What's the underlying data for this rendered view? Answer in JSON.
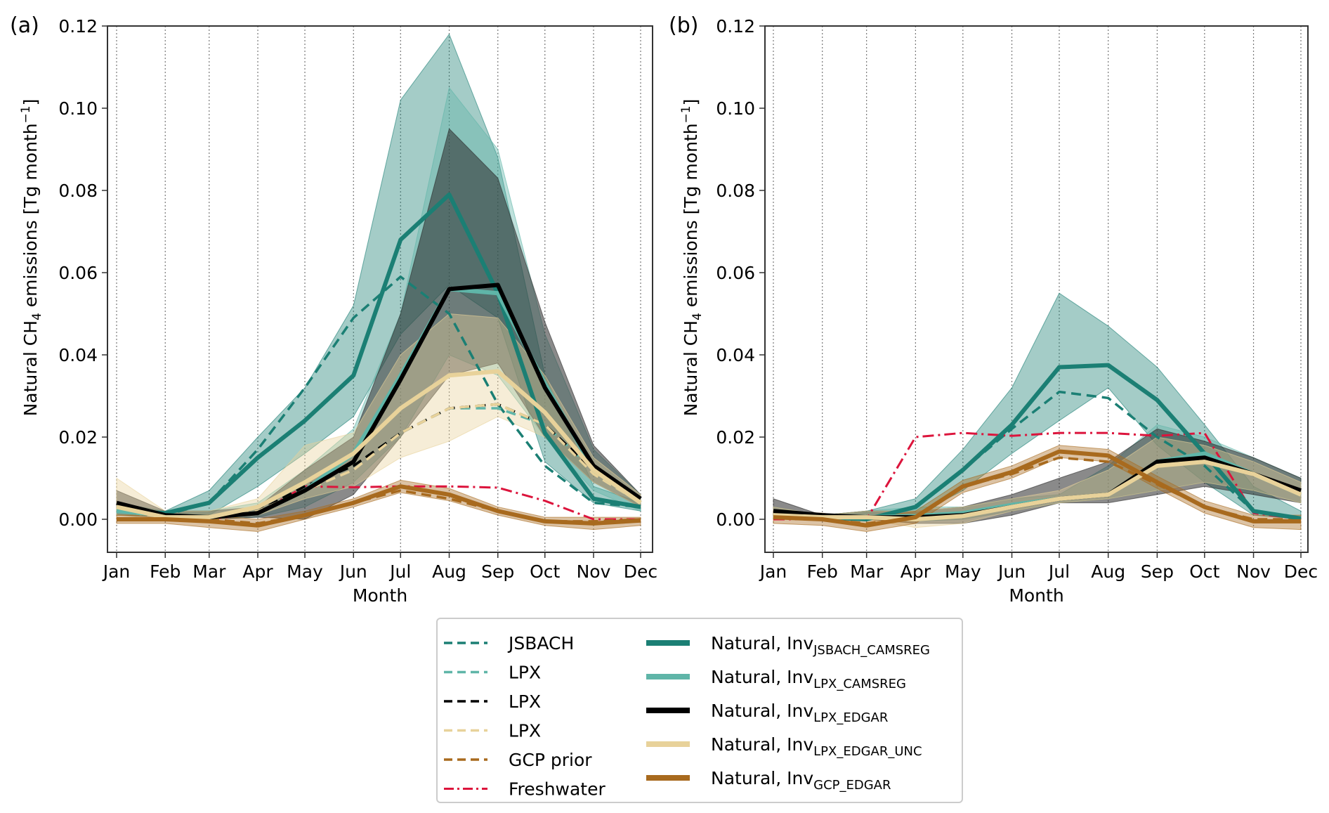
{
  "chart_data": [
    {
      "type": "line",
      "panel_label": "(a)",
      "xlabel": "Month",
      "ylabel": "Natural CH4 emissions [Tg month-1]",
      "ylabel_parts": {
        "pre": "Natural CH",
        "sub": "4",
        "mid": " emissions [Tg month",
        "sup": "−1",
        "post": "]"
      },
      "categories": [
        "Jan",
        "Feb",
        "Mar",
        "Apr",
        "May",
        "Jun",
        "Jul",
        "Aug",
        "Sep",
        "Oct",
        "Nov",
        "Dec"
      ],
      "ylim": [
        -0.008,
        0.12
      ],
      "yticks": [
        "0.00",
        "0.02",
        "0.04",
        "0.06",
        "0.08",
        "0.10",
        "0.12"
      ],
      "grid": "vertical-dotted",
      "bands": [
        {
          "name": "Inv JSBACH_CAMSREG range",
          "color": "#1b7f74",
          "lo": [
            0.001,
            0.001,
            0.001,
            0.008,
            0.016,
            0.025,
            0.045,
            0.057,
            0.049,
            0.014,
            0.004,
            0.002
          ],
          "hi": [
            0.003,
            0.002,
            0.007,
            0.02,
            0.032,
            0.052,
            0.102,
            0.118,
            0.088,
            0.035,
            0.008,
            0.004
          ]
        },
        {
          "name": "Inv LPX_CAMSREG range",
          "color": "#5fb5a8",
          "lo": [
            0.001,
            0.0005,
            0.0,
            0.0005,
            0.003,
            0.009,
            0.02,
            0.04,
            0.035,
            0.02,
            0.007,
            0.002
          ],
          "hi": [
            0.004,
            0.002,
            0.002,
            0.004,
            0.012,
            0.022,
            0.05,
            0.105,
            0.09,
            0.045,
            0.017,
            0.006
          ]
        },
        {
          "name": "Inv LPX_EDGAR range",
          "color": "#2a2a2a",
          "lo": [
            0.001,
            0.0005,
            0.0,
            0.0005,
            0.0,
            0.006,
            0.02,
            0.035,
            0.038,
            0.02,
            0.009,
            0.003
          ],
          "hi": [
            0.007,
            0.002,
            0.002,
            0.003,
            0.012,
            0.02,
            0.05,
            0.095,
            0.083,
            0.048,
            0.018,
            0.006
          ]
        },
        {
          "name": "Inv LPX_EDGAR_UNC range",
          "color": "#e8d29a",
          "lo": [
            0.001,
            0.0,
            0.0,
            0.001,
            0.005,
            0.008,
            0.015,
            0.019,
            0.025,
            0.02,
            0.009,
            0.003
          ],
          "hi": [
            0.01,
            0.002,
            0.002,
            0.005,
            0.018,
            0.021,
            0.04,
            0.05,
            0.049,
            0.035,
            0.015,
            0.006
          ]
        },
        {
          "name": "Inv GCP_EDGAR range",
          "color": "#a86a1e",
          "lo": [
            -0.001,
            -0.001,
            -0.002,
            -0.003,
            0.0,
            0.003,
            0.0065,
            0.0045,
            0.001,
            -0.0015,
            -0.0025,
            -0.0015
          ],
          "hi": [
            0.001,
            0.001,
            0.001,
            0.0,
            0.002,
            0.005,
            0.0095,
            0.0075,
            0.003,
            0.0005,
            0.0005,
            0.0005
          ]
        }
      ],
      "series": [
        {
          "name": "JSBACH",
          "style": "dashed",
          "color": "#1b7f74",
          "values": [
            0.002,
            0.001,
            0.004,
            0.017,
            0.032,
            0.049,
            0.059,
            0.05,
            0.028,
            0.013,
            0.004,
            0.003
          ]
        },
        {
          "name": "LPX (CAMSREG prior)",
          "style": "dashed",
          "color": "#5fb5a8",
          "values": [
            0.002,
            0.001,
            0.0005,
            0.002,
            0.008,
            0.013,
            0.021,
            0.027,
            0.027,
            0.023,
            0.012,
            0.004
          ]
        },
        {
          "name": "LPX (EDGAR prior)",
          "style": "dashed",
          "color": "#000000",
          "values": [
            0.002,
            0.001,
            0.0005,
            0.002,
            0.008,
            0.013,
            0.021,
            0.027,
            0.028,
            0.023,
            0.012,
            0.004
          ]
        },
        {
          "name": "LPX (EDGAR_UNC prior)",
          "style": "dashed",
          "color": "#e8d29a",
          "values": [
            0.002,
            0.0005,
            0.0005,
            0.002,
            0.007,
            0.012,
            0.021,
            0.027,
            0.028,
            0.023,
            0.011,
            0.004
          ]
        },
        {
          "name": "GCP prior",
          "style": "dashed",
          "color": "#a86a1e",
          "values": [
            0.0,
            0.0,
            0.0,
            -0.001,
            0.001,
            0.004,
            0.007,
            0.005,
            0.002,
            -0.0005,
            -0.0005,
            0.0
          ]
        },
        {
          "name": "Freshwater",
          "style": "dashdot",
          "color": "#dc143c",
          "values": [
            0.0,
            0.0,
            0.0,
            0.0015,
            0.008,
            0.0078,
            0.008,
            0.008,
            0.0077,
            0.0045,
            0.0,
            0.0
          ]
        },
        {
          "name": "Natural, Inv JSBACH_CAMSREG",
          "style": "solid",
          "color": "#1b7f74",
          "values": [
            0.002,
            0.0015,
            0.004,
            0.015,
            0.024,
            0.035,
            0.068,
            0.079,
            0.055,
            0.021,
            0.005,
            0.003
          ]
        },
        {
          "name": "Natural, Inv LPX_CAMSREG",
          "style": "solid",
          "color": "#5fb5a8",
          "values": [
            0.002,
            0.001,
            0.0005,
            0.0015,
            0.007,
            0.016,
            0.035,
            0.056,
            0.055,
            0.033,
            0.012,
            0.004
          ]
        },
        {
          "name": "Natural, Inv LPX_EDGAR",
          "style": "solid",
          "color": "#000000",
          "values": [
            0.004,
            0.001,
            0.0005,
            0.0015,
            0.007,
            0.014,
            0.034,
            0.056,
            0.057,
            0.032,
            0.013,
            0.005
          ]
        },
        {
          "name": "Natural, Inv LPX_EDGAR_UNC",
          "style": "solid",
          "color": "#e8d29a",
          "values": [
            0.003,
            0.0005,
            0.0005,
            0.003,
            0.009,
            0.016,
            0.027,
            0.035,
            0.036,
            0.026,
            0.012,
            0.004
          ]
        },
        {
          "name": "Natural, Inv GCP_EDGAR",
          "style": "solid",
          "color": "#a86a1e",
          "values": [
            0.0,
            0.0,
            -0.0005,
            -0.0015,
            0.001,
            0.004,
            0.008,
            0.006,
            0.002,
            -0.0005,
            -0.001,
            -0.0003
          ]
        }
      ]
    },
    {
      "type": "line",
      "panel_label": "(b)",
      "xlabel": "Month",
      "ylabel": "Natural CH4 emissions [Tg month-1]",
      "ylabel_parts": {
        "pre": "Natural CH",
        "sub": "4",
        "mid": " emissions [Tg month",
        "sup": "−1",
        "post": "]"
      },
      "categories": [
        "Jan",
        "Feb",
        "Mar",
        "Apr",
        "May",
        "Jun",
        "Jul",
        "Aug",
        "Sep",
        "Oct",
        "Nov",
        "Dec"
      ],
      "ylim": [
        -0.008,
        0.12
      ],
      "yticks": [
        "0.00",
        "0.02",
        "0.04",
        "0.06",
        "0.08",
        "0.10",
        "0.12"
      ],
      "grid": "vertical-dotted",
      "bands": [
        {
          "name": "Inv JSBACH_CAMSREG range",
          "color": "#1b7f74",
          "lo": [
            0.0,
            0.0,
            0.0,
            0.001,
            0.007,
            0.016,
            0.024,
            0.032,
            0.018,
            0.009,
            0.001,
            0.0
          ],
          "hi": [
            0.002,
            0.001,
            0.002,
            0.005,
            0.017,
            0.032,
            0.055,
            0.047,
            0.037,
            0.023,
            0.008,
            0.002
          ]
        },
        {
          "name": "Inv LPX_CAMSREG range",
          "color": "#5fb5a8",
          "lo": [
            0.0,
            0.0,
            0.0,
            -0.0005,
            0.0,
            0.002,
            0.004,
            0.005,
            0.007,
            0.009,
            0.007,
            0.004
          ],
          "hi": [
            0.003,
            0.001,
            0.002,
            0.003,
            0.003,
            0.005,
            0.006,
            0.013,
            0.023,
            0.02,
            0.015,
            0.01
          ]
        },
        {
          "name": "Inv LPX_EDGAR range",
          "color": "#2a2a2a",
          "lo": [
            0.0005,
            0.0,
            0.0,
            -0.001,
            -0.001,
            0.001,
            0.004,
            0.004,
            0.006,
            0.008,
            0.006,
            0.004
          ],
          "hi": [
            0.005,
            0.001,
            0.002,
            0.002,
            0.003,
            0.006,
            0.01,
            0.014,
            0.022,
            0.019,
            0.015,
            0.01
          ]
        },
        {
          "name": "Inv LPX_EDGAR_UNC range",
          "color": "#e8d29a",
          "lo": [
            0.0,
            0.0,
            0.0,
            -0.002,
            -0.001,
            0.002,
            0.004,
            0.005,
            0.007,
            0.009,
            0.007,
            0.004
          ],
          "hi": [
            0.003,
            0.001,
            0.002,
            0.002,
            0.003,
            0.005,
            0.007,
            0.012,
            0.02,
            0.018,
            0.014,
            0.009
          ]
        },
        {
          "name": "Inv GCP_EDGAR range",
          "color": "#a86a1e",
          "lo": [
            -0.001,
            -0.0015,
            -0.003,
            -0.001,
            0.0065,
            0.01,
            0.015,
            0.014,
            0.0075,
            0.0015,
            -0.002,
            -0.0025
          ],
          "hi": [
            0.002,
            0.0015,
            0.0,
            0.002,
            0.0095,
            0.013,
            0.018,
            0.017,
            0.0105,
            0.0045,
            0.001,
            0.001
          ]
        }
      ],
      "series": [
        {
          "name": "JSBACH",
          "style": "dashed",
          "color": "#1b7f74",
          "values": [
            0.001,
            0.0005,
            0.0,
            0.003,
            0.012,
            0.022,
            0.031,
            0.0295,
            0.02,
            0.013,
            0.002,
            0.0002
          ]
        },
        {
          "name": "LPX (CAMSREG prior)",
          "style": "dashed",
          "color": "#5fb5a8",
          "values": [
            0.001,
            0.0005,
            0.0005,
            0.0008,
            0.0015,
            0.0035,
            0.005,
            0.006,
            0.013,
            0.015,
            0.011,
            0.006
          ]
        },
        {
          "name": "LPX (EDGAR prior)",
          "style": "dashed",
          "color": "#000000",
          "values": [
            0.001,
            0.0005,
            0.0005,
            0.0008,
            0.0015,
            0.0035,
            0.005,
            0.006,
            0.013,
            0.015,
            0.011,
            0.006
          ]
        },
        {
          "name": "LPX (EDGAR_UNC prior)",
          "style": "dashed",
          "color": "#e8d29a",
          "values": [
            0.001,
            0.0005,
            0.0005,
            0.0008,
            0.0015,
            0.0035,
            0.005,
            0.006,
            0.013,
            0.014,
            0.011,
            0.006
          ]
        },
        {
          "name": "GCP prior",
          "style": "dashed",
          "color": "#a86a1e",
          "values": [
            0.0005,
            0.0,
            -0.001,
            0.0005,
            0.008,
            0.011,
            0.015,
            0.014,
            0.0085,
            0.003,
            0.0,
            0.0
          ]
        },
        {
          "name": "Freshwater",
          "style": "dashdot",
          "color": "#dc143c",
          "values": [
            0.0,
            0.0,
            0.0,
            0.02,
            0.021,
            0.0203,
            0.021,
            0.021,
            0.0203,
            0.021,
            0.0015,
            0.0
          ]
        },
        {
          "name": "Natural, Inv JSBACH_CAMSREG",
          "style": "solid",
          "color": "#1b7f74",
          "values": [
            0.001,
            0.0005,
            0.0,
            0.003,
            0.012,
            0.023,
            0.037,
            0.0375,
            0.029,
            0.016,
            0.002,
            0.0002
          ]
        },
        {
          "name": "Natural, Inv LPX_CAMSREG",
          "style": "solid",
          "color": "#5fb5a8",
          "values": [
            0.001,
            0.0005,
            0.0005,
            0.0008,
            0.0015,
            0.0035,
            0.005,
            0.006,
            0.014,
            0.016,
            0.011,
            0.006
          ]
        },
        {
          "name": "Natural, Inv LPX_EDGAR",
          "style": "solid",
          "color": "#000000",
          "values": [
            0.002,
            0.001,
            0.0005,
            0.0005,
            0.001,
            0.003,
            0.005,
            0.006,
            0.014,
            0.015,
            0.011,
            0.007
          ]
        },
        {
          "name": "Natural, Inv LPX_EDGAR_UNC",
          "style": "solid",
          "color": "#e8d29a",
          "values": [
            0.001,
            0.0005,
            0.0005,
            0.0,
            0.0008,
            0.003,
            0.005,
            0.006,
            0.013,
            0.014,
            0.011,
            0.006
          ]
        },
        {
          "name": "Natural, Inv GCP_EDGAR",
          "style": "solid",
          "color": "#a86a1e",
          "values": [
            0.0005,
            0.0,
            -0.0015,
            0.0005,
            0.008,
            0.0115,
            0.0165,
            0.0155,
            0.009,
            0.003,
            -0.0005,
            -0.0005
          ]
        }
      ]
    }
  ],
  "legend": {
    "position": "bottom-center",
    "left_column": [
      {
        "label": "JSBACH",
        "style": "dashed",
        "color": "#1b7f74"
      },
      {
        "label": "LPX",
        "style": "dashed",
        "color": "#5fb5a8"
      },
      {
        "label": "LPX",
        "style": "dashed",
        "color": "#000000"
      },
      {
        "label": "LPX",
        "style": "dashed",
        "color": "#e8d29a"
      },
      {
        "label": "GCP prior",
        "style": "dashed",
        "color": "#a86a1e"
      },
      {
        "label": "Freshwater",
        "style": "dashdot",
        "color": "#dc143c"
      }
    ],
    "right_column": [
      {
        "label": "Natural,  Inv",
        "sub": "JSBACH_CAMSREG",
        "style": "solid",
        "color": "#1b7f74"
      },
      {
        "label": "Natural, Inv",
        "sub": "LPX_CAMSREG",
        "style": "solid",
        "color": "#5fb5a8"
      },
      {
        "label": "Natural, Inv",
        "sub": "LPX_EDGAR",
        "style": "solid",
        "color": "#000000"
      },
      {
        "label": "Natural, Inv",
        "sub": "LPX_EDGAR_UNC",
        "style": "solid",
        "color": "#e8d29a"
      },
      {
        "label": "Natural, Inv",
        "sub": "GCP_EDGAR",
        "style": "solid",
        "color": "#a86a1e"
      }
    ]
  }
}
